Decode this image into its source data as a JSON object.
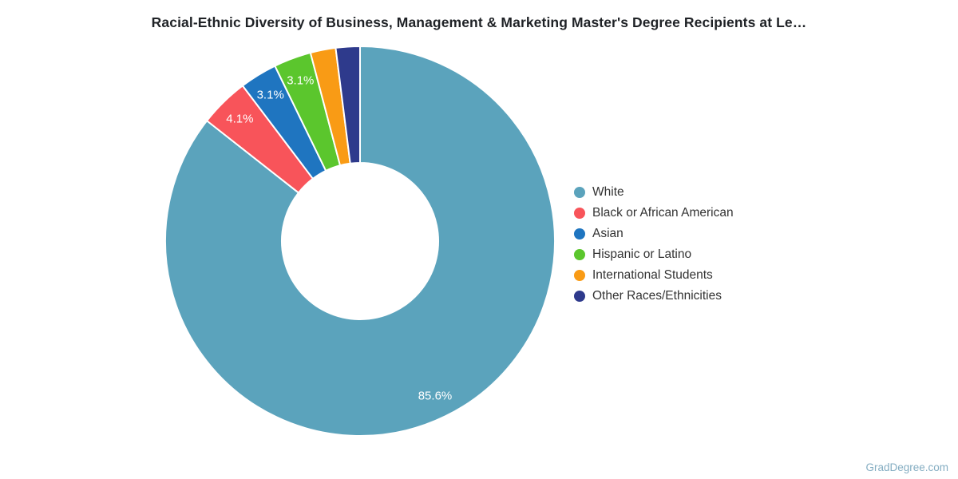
{
  "title": "Racial-Ethnic Diversity of Business, Management & Marketing Master's Degree Recipients at Le…",
  "watermark": "GradDegree.com",
  "chart_data": {
    "type": "pie",
    "subtype": "donut",
    "title": "Racial-Ethnic Diversity of Business, Management & Marketing Master's Degree Recipients at Le…",
    "categories": [
      "White",
      "Black or African American",
      "Asian",
      "Hispanic or Latino",
      "International Students",
      "Other Races/Ethnicities"
    ],
    "values": [
      85.6,
      4.1,
      3.1,
      3.1,
      2.1,
      2.0
    ],
    "displayed_percent_labels": [
      "85.6%",
      "4.1%",
      "3.1%",
      "3.1%",
      "",
      ""
    ],
    "colors": [
      "#5BA3BC",
      "#F8545A",
      "#1F75C0",
      "#5BC62D",
      "#F99B15",
      "#2E3A8C"
    ],
    "slice_label_color": "#FFFFFF",
    "legend_position": "right",
    "legend_text_color": "#333333",
    "start_angle": 0,
    "direction": "clockwise",
    "grid": false
  }
}
